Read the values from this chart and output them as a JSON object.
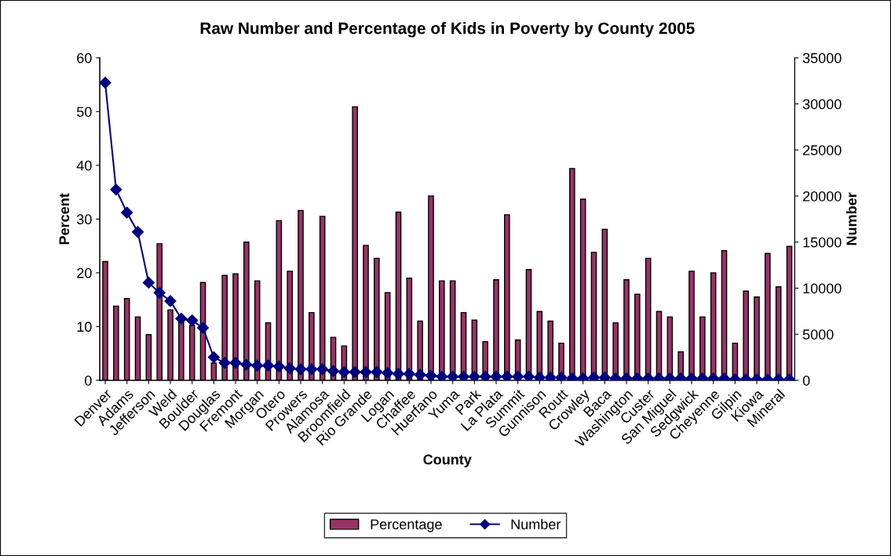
{
  "chart_data": {
    "type": "bar",
    "title": "Raw Number and Percentage of Kids in Poverty by County 2005",
    "xlabel": "County",
    "ylabel": "Percent",
    "y2label": "Number",
    "categories": [
      "Denver",
      null,
      "Adams",
      null,
      "Jefferson",
      null,
      "Weld",
      null,
      "Boulder",
      null,
      "Douglas",
      null,
      "Fremont",
      null,
      "Morgan",
      null,
      "Otero",
      null,
      "Prowers",
      null,
      "Alamosa",
      null,
      "Broomfield",
      null,
      "Rio Grande",
      null,
      "Logan",
      null,
      "Chaffee",
      null,
      "Huerfano",
      null,
      "Yuma",
      null,
      "Park",
      null,
      "La Plata",
      null,
      "Summit",
      null,
      "Gunnison",
      null,
      "Routt",
      null,
      "Crowley",
      null,
      "Baca",
      null,
      "Washington",
      null,
      "Custer",
      null,
      "San Miguel",
      null,
      "Sedgwick",
      null,
      "Cheyenne",
      null,
      "Gilpin",
      null,
      "Kiowa",
      null,
      "Mineral",
      null
    ],
    "series": [
      {
        "name": "Percentage",
        "color": "#993366",
        "values": [
          22.1,
          13.8,
          15.2,
          11.8,
          8.5,
          25.4,
          13.1,
          11.3,
          10.2,
          18.2,
          3.2,
          19.5,
          19.8,
          25.7,
          18.5,
          10.7,
          29.7,
          20.3,
          31.6,
          12.6,
          30.5,
          8.0,
          6.4,
          50.9,
          25.1,
          22.7,
          16.3,
          31.3,
          19.0,
          11.0,
          34.3,
          18.5,
          18.5,
          12.6,
          11.2,
          7.2,
          18.7,
          30.8,
          7.5,
          20.6,
          12.8,
          11.0,
          6.9,
          39.4,
          33.7,
          23.8,
          28.1,
          10.7,
          18.7,
          16.0,
          22.7,
          12.8,
          11.8,
          5.3,
          20.3,
          11.8,
          20.0,
          24.1,
          6.9,
          16.6,
          15.5,
          23.6,
          17.4,
          24.9
        ]
      },
      {
        "name": "Number",
        "type": "line",
        "axis": "y2",
        "color": "#000080",
        "marker": "diamond",
        "line_style": "solid",
        "values": [
          32300,
          20700,
          18200,
          16100,
          10600,
          9500,
          8600,
          6700,
          6500,
          5700,
          2500,
          1900,
          1900,
          1700,
          1600,
          1600,
          1500,
          1300,
          1200,
          1200,
          1200,
          1000,
          900,
          900,
          900,
          900,
          800,
          700,
          700,
          600,
          500,
          400,
          400,
          400,
          400,
          400,
          400,
          400,
          400,
          400,
          300,
          300,
          300,
          200,
          200,
          300,
          300,
          200,
          200,
          200,
          200,
          200,
          200,
          200,
          200,
          200,
          200,
          200,
          100,
          100,
          100,
          100,
          100,
          100
        ]
      }
    ],
    "ylim": [
      0,
      60
    ],
    "yticks": [
      0,
      10,
      20,
      30,
      40,
      50,
      60
    ],
    "y2lim": [
      0,
      35000
    ],
    "y2ticks": [
      0,
      5000,
      10000,
      15000,
      20000,
      25000,
      30000,
      35000
    ],
    "grid": false,
    "legend": "bottom"
  }
}
